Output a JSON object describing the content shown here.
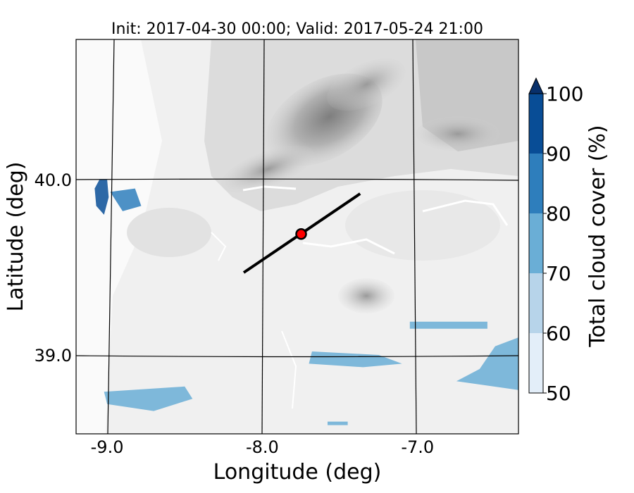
{
  "chart_data": {
    "type": "heatmap",
    "title": "Init: 2017-04-30 00:00; Valid: 2017-05-24 21:00",
    "xlabel": "Longitude (deg)",
    "ylabel": "Latitude (deg)",
    "xlim": [
      -9.2,
      -6.35
    ],
    "ylim": [
      38.55,
      40.8
    ],
    "x_ticks": [
      -9.0,
      -8.0,
      -7.0
    ],
    "x_tick_labels": [
      "-9.0",
      "-8.0",
      "-7.0"
    ],
    "y_ticks": [
      39.0,
      40.0
    ],
    "y_tick_labels": [
      "39.0",
      "40.0"
    ],
    "grid": true,
    "background": "grayscale terrain elevation contours",
    "transect": {
      "start": {
        "lon": -8.12,
        "lat": 39.47
      },
      "end": {
        "lon": -7.37,
        "lat": 39.92
      },
      "color": "#000000"
    },
    "marker": {
      "lon": -7.75,
      "lat": 39.69,
      "color": "#ff0000"
    },
    "colorbar": {
      "label": "Total cloud cover (%)",
      "ticks": [
        50,
        60,
        70,
        80,
        90,
        100
      ],
      "tick_labels": [
        "50",
        "60",
        "70",
        "80",
        "90",
        "100"
      ],
      "extend": "max",
      "levels": [
        {
          "range": [
            50,
            60
          ],
          "color": "#e3eef9"
        },
        {
          "range": [
            60,
            70
          ],
          "color": "#b7d4ea"
        },
        {
          "range": [
            70,
            80
          ],
          "color": "#6aaed6"
        },
        {
          "range": [
            80,
            90
          ],
          "color": "#2e7ebc"
        },
        {
          "range": [
            90,
            100
          ],
          "color": "#084d96"
        }
      ],
      "extend_color": "#08306b"
    },
    "cloud_patches": [
      {
        "name": "west-coast-patch",
        "level": 90,
        "points": [
          [
            -9.05,
            40.0
          ],
          [
            -9.0,
            40.0
          ],
          [
            -8.99,
            39.9
          ],
          [
            -9.02,
            39.8
          ],
          [
            -9.07,
            39.85
          ],
          [
            -9.08,
            39.95
          ]
        ]
      },
      {
        "name": "west-coast-scatter",
        "level": 80,
        "points": [
          [
            -8.98,
            39.93
          ],
          [
            -8.82,
            39.95
          ],
          [
            -8.78,
            39.85
          ],
          [
            -8.9,
            39.82
          ]
        ]
      },
      {
        "name": "southwest-band",
        "level": 70,
        "points": [
          [
            -9.02,
            38.79
          ],
          [
            -8.5,
            38.82
          ],
          [
            -8.45,
            38.75
          ],
          [
            -8.7,
            38.68
          ],
          [
            -9.0,
            38.72
          ]
        ]
      },
      {
        "name": "central-east-band",
        "level": 70,
        "points": [
          [
            -7.68,
            39.02
          ],
          [
            -7.25,
            39.0
          ],
          [
            -7.1,
            38.95
          ],
          [
            -7.35,
            38.93
          ],
          [
            -7.7,
            38.95
          ]
        ]
      },
      {
        "name": "east-upper-streak",
        "level": 70,
        "points": [
          [
            -7.05,
            39.19
          ],
          [
            -6.55,
            39.19
          ],
          [
            -6.55,
            39.15
          ],
          [
            -7.05,
            39.15
          ]
        ]
      },
      {
        "name": "east-edge-patch",
        "level": 70,
        "points": [
          [
            -6.35,
            39.1
          ],
          [
            -6.5,
            39.05
          ],
          [
            -6.6,
            38.92
          ],
          [
            -6.75,
            38.85
          ],
          [
            -6.35,
            38.8
          ]
        ]
      },
      {
        "name": "south-central-dots",
        "level": 70,
        "points": [
          [
            -7.58,
            38.62
          ],
          [
            -7.45,
            38.62
          ],
          [
            -7.45,
            38.6
          ],
          [
            -7.58,
            38.6
          ]
        ]
      }
    ]
  }
}
